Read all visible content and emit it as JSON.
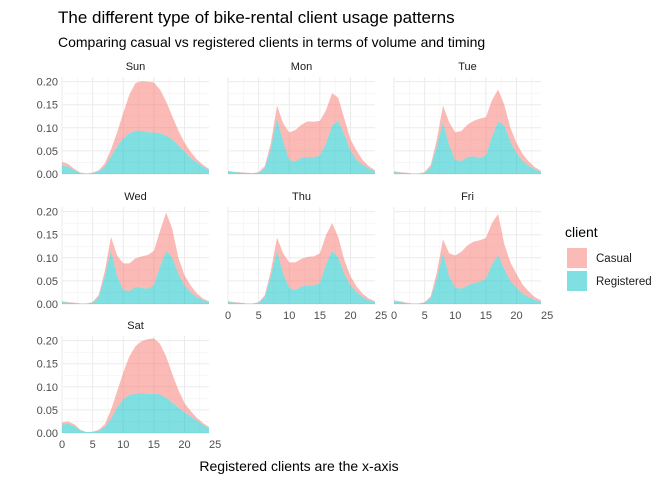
{
  "chart_data": {
    "type": "area",
    "title": "The different type of bike-rental client usage patterns",
    "subtitle": "Comparing casual vs registered clients in terms of volume and timing",
    "xlabel": "Registered clients are the x-axis",
    "ylabel": "",
    "xlim": [
      0,
      24
    ],
    "ylim": [
      0,
      0.21
    ],
    "x_ticks": [
      "0",
      "5",
      "10",
      "15",
      "20",
      "25"
    ],
    "y_ticks": [
      "0.00",
      "0.05",
      "0.10",
      "0.15",
      "0.20"
    ],
    "grid": true,
    "stacked": true,
    "legend": {
      "title": "client",
      "position": "right",
      "entries": [
        {
          "name": "Casual",
          "color": "#F8766D"
        },
        {
          "name": "Registered",
          "color": "#00BFC4"
        }
      ]
    },
    "x": [
      0,
      1,
      2,
      3,
      4,
      5,
      6,
      7,
      8,
      9,
      10,
      11,
      12,
      13,
      14,
      15,
      16,
      17,
      18,
      19,
      20,
      21,
      22,
      23,
      24
    ],
    "panels": [
      {
        "label": "Sun",
        "series": [
          {
            "name": "Registered",
            "values": [
              0.018,
              0.016,
              0.008,
              0.002,
              0.001,
              0.002,
              0.006,
              0.016,
              0.038,
              0.06,
              0.077,
              0.088,
              0.094,
              0.093,
              0.09,
              0.09,
              0.088,
              0.083,
              0.075,
              0.062,
              0.048,
              0.035,
              0.025,
              0.016,
              0.009
            ]
          },
          {
            "name": "Casual",
            "values": [
              0.008,
              0.006,
              0.003,
              0.001,
              0.0,
              0.001,
              0.002,
              0.007,
              0.015,
              0.03,
              0.055,
              0.084,
              0.103,
              0.108,
              0.11,
              0.108,
              0.095,
              0.074,
              0.05,
              0.032,
              0.02,
              0.013,
              0.007,
              0.004,
              0.002
            ]
          }
        ]
      },
      {
        "label": "Mon",
        "series": [
          {
            "name": "Registered",
            "values": [
              0.005,
              0.004,
              0.003,
              0.002,
              0.002,
              0.003,
              0.012,
              0.055,
              0.12,
              0.07,
              0.03,
              0.027,
              0.035,
              0.037,
              0.036,
              0.04,
              0.065,
              0.105,
              0.115,
              0.085,
              0.05,
              0.03,
              0.02,
              0.012,
              0.006
            ]
          },
          {
            "name": "Casual",
            "values": [
              0.002,
              0.001,
              0.001,
              0.001,
              0.0,
              0.001,
              0.005,
              0.012,
              0.028,
              0.04,
              0.06,
              0.068,
              0.072,
              0.077,
              0.077,
              0.075,
              0.073,
              0.07,
              0.05,
              0.035,
              0.025,
              0.02,
              0.01,
              0.005,
              0.002
            ]
          }
        ]
      },
      {
        "label": "Tue",
        "series": [
          {
            "name": "Registered",
            "values": [
              0.004,
              0.003,
              0.002,
              0.001,
              0.001,
              0.003,
              0.015,
              0.06,
              0.112,
              0.062,
              0.03,
              0.028,
              0.037,
              0.038,
              0.035,
              0.04,
              0.08,
              0.113,
              0.105,
              0.07,
              0.045,
              0.028,
              0.017,
              0.01,
              0.005
            ]
          },
          {
            "name": "Casual",
            "values": [
              0.002,
              0.001,
              0.001,
              0.0,
              0.0,
              0.001,
              0.005,
              0.015,
              0.036,
              0.05,
              0.06,
              0.065,
              0.07,
              0.077,
              0.085,
              0.083,
              0.08,
              0.07,
              0.045,
              0.03,
              0.022,
              0.015,
              0.01,
              0.005,
              0.002
            ]
          }
        ]
      },
      {
        "label": "Wed",
        "series": [
          {
            "name": "Registered",
            "values": [
              0.004,
              0.003,
              0.002,
              0.001,
              0.001,
              0.003,
              0.015,
              0.06,
              0.115,
              0.06,
              0.03,
              0.028,
              0.037,
              0.035,
              0.033,
              0.04,
              0.08,
              0.115,
              0.1,
              0.065,
              0.04,
              0.025,
              0.015,
              0.008,
              0.004
            ]
          },
          {
            "name": "Casual",
            "values": [
              0.002,
              0.001,
              0.001,
              0.0,
              0.0,
              0.001,
              0.005,
              0.012,
              0.03,
              0.045,
              0.058,
              0.06,
              0.062,
              0.068,
              0.073,
              0.075,
              0.078,
              0.083,
              0.063,
              0.035,
              0.022,
              0.015,
              0.008,
              0.004,
              0.002
            ]
          }
        ]
      },
      {
        "label": "Thu",
        "series": [
          {
            "name": "Registered",
            "values": [
              0.004,
              0.003,
              0.002,
              0.001,
              0.001,
              0.003,
              0.015,
              0.06,
              0.115,
              0.065,
              0.035,
              0.03,
              0.038,
              0.04,
              0.04,
              0.045,
              0.085,
              0.115,
              0.1,
              0.065,
              0.04,
              0.025,
              0.015,
              0.008,
              0.004
            ]
          },
          {
            "name": "Casual",
            "values": [
              0.002,
              0.001,
              0.001,
              0.0,
              0.0,
              0.001,
              0.004,
              0.012,
              0.029,
              0.045,
              0.055,
              0.06,
              0.06,
              0.062,
              0.063,
              0.065,
              0.064,
              0.06,
              0.045,
              0.03,
              0.02,
              0.013,
              0.007,
              0.004,
              0.002
            ]
          }
        ]
      },
      {
        "label": "Fri",
        "series": [
          {
            "name": "Registered",
            "values": [
              0.005,
              0.004,
              0.002,
              0.001,
              0.001,
              0.003,
              0.013,
              0.055,
              0.11,
              0.06,
              0.035,
              0.033,
              0.04,
              0.045,
              0.048,
              0.055,
              0.085,
              0.105,
              0.075,
              0.05,
              0.035,
              0.022,
              0.015,
              0.009,
              0.005
            ]
          },
          {
            "name": "Casual",
            "values": [
              0.003,
              0.002,
              0.001,
              0.0,
              0.0,
              0.001,
              0.004,
              0.014,
              0.03,
              0.05,
              0.07,
              0.08,
              0.087,
              0.09,
              0.09,
              0.088,
              0.09,
              0.09,
              0.055,
              0.04,
              0.03,
              0.02,
              0.012,
              0.006,
              0.003
            ]
          }
        ]
      },
      {
        "label": "Sat",
        "series": [
          {
            "name": "Registered",
            "values": [
              0.018,
              0.02,
              0.015,
              0.006,
              0.002,
              0.002,
              0.005,
              0.013,
              0.03,
              0.055,
              0.073,
              0.082,
              0.085,
              0.086,
              0.085,
              0.085,
              0.083,
              0.076,
              0.066,
              0.055,
              0.045,
              0.036,
              0.027,
              0.018,
              0.01
            ]
          },
          {
            "name": "Casual",
            "values": [
              0.005,
              0.005,
              0.004,
              0.001,
              0.0,
              0.001,
              0.002,
              0.006,
              0.02,
              0.035,
              0.058,
              0.084,
              0.103,
              0.113,
              0.118,
              0.12,
              0.11,
              0.09,
              0.062,
              0.038,
              0.02,
              0.012,
              0.006,
              0.004,
              0.003
            ]
          }
        ]
      }
    ]
  }
}
